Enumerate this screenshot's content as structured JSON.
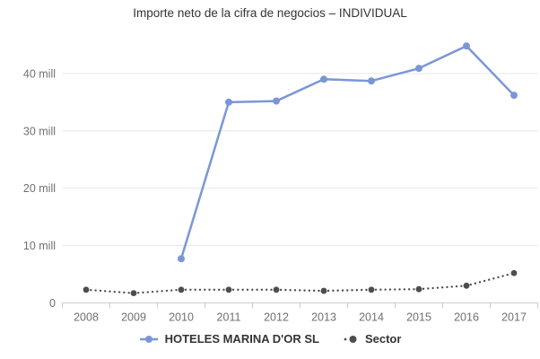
{
  "title": "Importe neto de la cifra de negocios – INDIVIDUAL",
  "colors": {
    "company_series": "#7b96d8",
    "sector_series": "#4d4d4d",
    "gridline": "#e6e6e6",
    "axis_line": "#cccccc",
    "axis_text": "#707070",
    "title_text": "#333333"
  },
  "legend": {
    "items": [
      {
        "label": "HOTELES MARINA D'OR SL",
        "marker": "solid-line-dot",
        "color": "#7b96d8"
      },
      {
        "label": "Sector",
        "marker": "dotted-line-dot",
        "color": "#4d4d4d"
      }
    ]
  },
  "chart_data": {
    "type": "line",
    "title": "Importe neto de la cifra de negocios – INDIVIDUAL",
    "categories": [
      "2008",
      "2009",
      "2010",
      "2011",
      "2012",
      "2013",
      "2014",
      "2015",
      "2016",
      "2017"
    ],
    "series": [
      {
        "name": "HOTELES MARINA D'OR SL",
        "color": "#7b96d8",
        "style": "solid",
        "values": [
          null,
          null,
          7.7,
          35.0,
          35.2,
          39.0,
          38.7,
          40.9,
          44.8,
          36.2
        ]
      },
      {
        "name": "Sector",
        "color": "#4d4d4d",
        "style": "dotted",
        "values": [
          2.3,
          1.7,
          2.3,
          2.3,
          2.3,
          2.1,
          2.3,
          2.4,
          3.0,
          5.2
        ]
      }
    ],
    "xlabel": "",
    "ylabel": "",
    "yticks": [
      0,
      10,
      20,
      30,
      40
    ],
    "ytick_labels": [
      "0",
      "10 mill",
      "20 mill",
      "30 mill",
      "40 mill"
    ],
    "ylim": [
      0,
      47
    ],
    "grid": true,
    "legend_position": "bottom",
    "units": "mill"
  }
}
